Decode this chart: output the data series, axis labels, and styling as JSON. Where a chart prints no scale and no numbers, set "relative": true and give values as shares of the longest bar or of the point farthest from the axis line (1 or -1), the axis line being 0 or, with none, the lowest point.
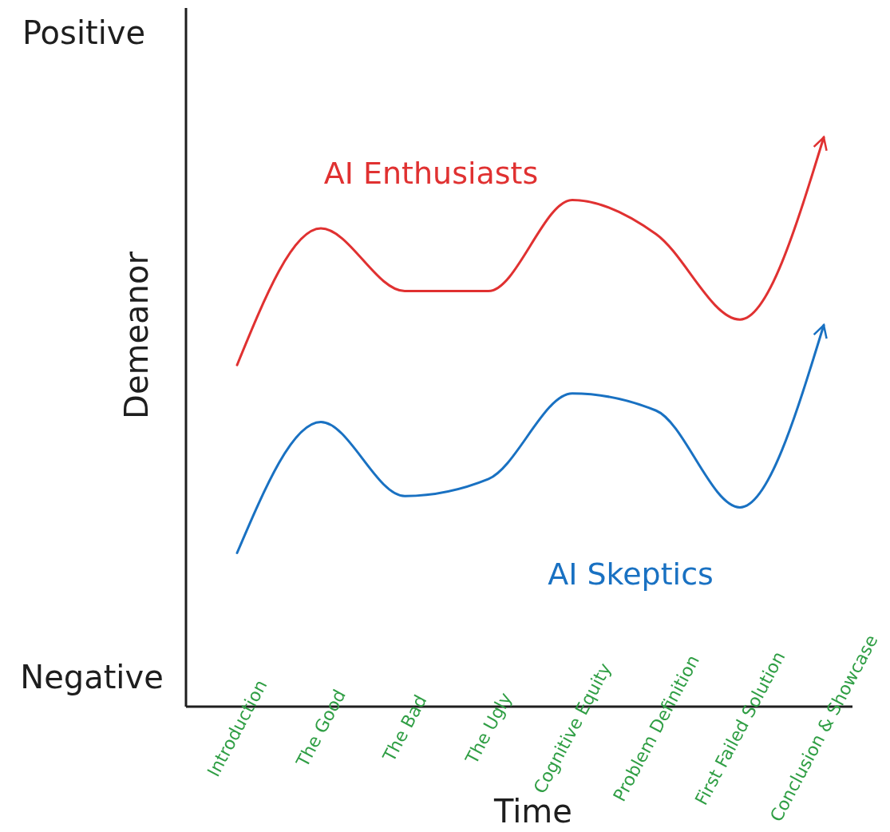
{
  "chart_data": {
    "type": "line",
    "relative": true,
    "xlabel": "Time",
    "ylabel": "Demeanor",
    "categories": [
      "Introduction",
      "The Good",
      "The Bad",
      "The Ugly",
      "Cognitive Equity",
      "Problem Definition",
      "First Failed Solution",
      "Conclusion & Showcase"
    ],
    "annotations": [
      "Positive",
      "Negative"
    ],
    "series": [
      {
        "name": "AI Enthusiasts",
        "color": "#e03131",
        "values": [
          0.6,
          0.84,
          0.73,
          0.73,
          0.89,
          0.83,
          0.68,
          1
        ]
      },
      {
        "name": "AI Skeptics",
        "color": "#1971c2",
        "values": [
          0.27,
          0.5,
          0.37,
          0.4,
          0.55,
          0.52,
          0.35,
          0.67
        ]
      }
    ]
  }
}
